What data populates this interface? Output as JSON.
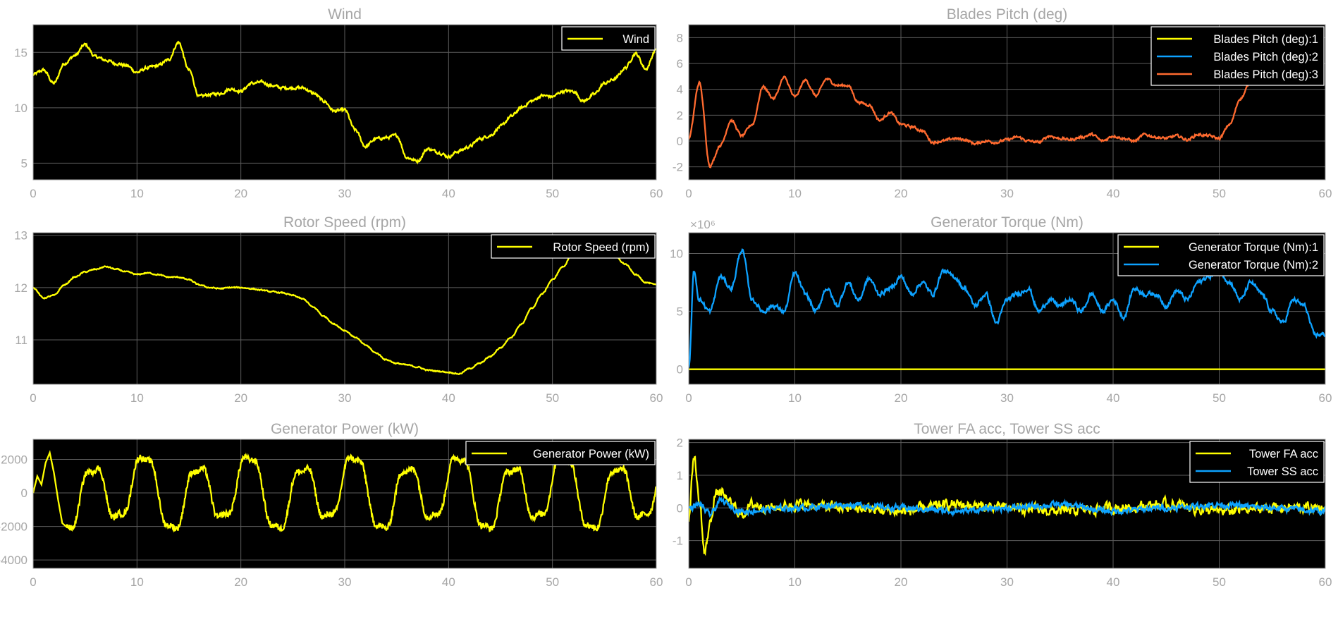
{
  "theme": {
    "plot_bg": "#000000",
    "grid": "#5c5c5c",
    "axis_color": "#a6a6a6",
    "legend_border": "#ffffff",
    "yellow": "#ffff00",
    "blue": "#0da2ff",
    "orange": "#ff6a2f"
  },
  "chart_data": [
    {
      "type": "line",
      "title": "Wind",
      "xlim": [
        0,
        60
      ],
      "ylim": [
        3.5,
        17.5
      ],
      "xticks": [
        0,
        10,
        20,
        30,
        40,
        50,
        60
      ],
      "yticks": [
        5,
        10,
        15
      ],
      "grid": true,
      "legend_position": "top-right",
      "series": [
        {
          "name": "Wind",
          "color": "#ffff00",
          "x": [
            0,
            1,
            2,
            3,
            4,
            5,
            6,
            7,
            8,
            9,
            10,
            11,
            12,
            13,
            14,
            15,
            16,
            17,
            18,
            19,
            20,
            21,
            22,
            23,
            24,
            25,
            26,
            27,
            28,
            29,
            30,
            31,
            32,
            33,
            34,
            35,
            36,
            37,
            38,
            39,
            40,
            41,
            42,
            43,
            44,
            45,
            46,
            47,
            48,
            49,
            50,
            51,
            52,
            53,
            54,
            55,
            56,
            57,
            58,
            59,
            60
          ],
          "y": [
            13.0,
            13.4,
            12.2,
            14.0,
            14.7,
            15.7,
            14.6,
            14.3,
            14.0,
            13.8,
            13.2,
            13.6,
            13.8,
            14.3,
            15.9,
            13.4,
            11.0,
            11.2,
            11.3,
            11.7,
            11.5,
            12.2,
            12.3,
            12.0,
            11.8,
            11.8,
            11.8,
            11.3,
            10.6,
            9.7,
            9.8,
            8.0,
            6.5,
            7.2,
            7.3,
            7.5,
            5.5,
            5.2,
            6.3,
            6.0,
            5.6,
            6.1,
            6.5,
            7.2,
            7.5,
            8.3,
            9.2,
            10.0,
            10.6,
            11.1,
            11.0,
            11.5,
            11.5,
            10.6,
            11.2,
            12.2,
            12.6,
            13.6,
            14.9,
            13.5,
            15.3
          ],
          "noise": 0.25
        }
      ]
    },
    {
      "type": "line",
      "title": "Blades Pitch (deg)",
      "xlim": [
        0,
        60
      ],
      "ylim": [
        -3,
        9
      ],
      "xticks": [
        0,
        10,
        20,
        30,
        40,
        50,
        60
      ],
      "yticks": [
        -2,
        0,
        2,
        4,
        6,
        8
      ],
      "grid": true,
      "legend_position": "top-right",
      "series": [
        {
          "name": "Blades Pitch (deg):1",
          "color": "#ffff00",
          "x": [],
          "y": []
        },
        {
          "name": "Blades Pitch (deg):2",
          "color": "#0da2ff",
          "x": [],
          "y": []
        },
        {
          "name": "Blades Pitch (deg):3",
          "color": "#ff6a2f",
          "x": [
            0,
            1,
            2,
            3,
            4,
            5,
            6,
            7,
            8,
            9,
            10,
            11,
            12,
            13,
            14,
            15,
            16,
            17,
            18,
            19,
            20,
            21,
            22,
            23,
            24,
            25,
            26,
            27,
            28,
            29,
            30,
            31,
            32,
            33,
            34,
            35,
            36,
            37,
            38,
            39,
            40,
            41,
            42,
            43,
            44,
            45,
            46,
            47,
            48,
            49,
            50,
            51,
            52,
            53
          ],
          "y": [
            0.2,
            4.5,
            -1.9,
            -0.3,
            1.6,
            0.4,
            1.3,
            4.2,
            3.3,
            4.9,
            3.4,
            4.7,
            3.5,
            4.8,
            4.3,
            4.3,
            3.0,
            2.8,
            1.6,
            2.2,
            1.3,
            1.1,
            0.8,
            -0.1,
            0.0,
            0.2,
            0.1,
            -0.2,
            0.0,
            -0.1,
            0.1,
            0.3,
            0.0,
            -0.1,
            0.4,
            0.2,
            0.1,
            0.3,
            0.5,
            0.0,
            0.4,
            0.2,
            0.0,
            0.5,
            0.3,
            0.2,
            0.4,
            0.1,
            0.5,
            0.4,
            0.2,
            1.3,
            3.3,
            4.6
          ],
          "noise": 0.18
        }
      ]
    },
    {
      "type": "line",
      "title": "Rotor Speed (rpm)",
      "xlim": [
        0,
        60
      ],
      "ylim": [
        10.15,
        13.05
      ],
      "xticks": [
        0,
        10,
        20,
        30,
        40,
        50,
        60
      ],
      "yticks": [
        11,
        12,
        13
      ],
      "grid": true,
      "legend_position": "top-right",
      "series": [
        {
          "name": "Rotor Speed (rpm)",
          "color": "#ffff00",
          "x": [
            0,
            1,
            2,
            3,
            4,
            5,
            6,
            7,
            8,
            9,
            10,
            11,
            12,
            13,
            14,
            15,
            16,
            17,
            18,
            19,
            20,
            21,
            22,
            23,
            24,
            25,
            26,
            27,
            28,
            29,
            30,
            31,
            32,
            33,
            34,
            35,
            36,
            37,
            38,
            39,
            40,
            41,
            42,
            43,
            44,
            45,
            46,
            47,
            48,
            49,
            50,
            51,
            52,
            53,
            54,
            55,
            56,
            57,
            58,
            59,
            60
          ],
          "y": [
            12.0,
            11.8,
            11.85,
            12.05,
            12.2,
            12.3,
            12.35,
            12.4,
            12.35,
            12.3,
            12.25,
            12.28,
            12.25,
            12.2,
            12.2,
            12.15,
            12.05,
            12.0,
            11.98,
            12.0,
            12.0,
            11.98,
            11.95,
            11.92,
            11.9,
            11.85,
            11.78,
            11.62,
            11.45,
            11.3,
            11.18,
            11.05,
            10.9,
            10.75,
            10.62,
            10.55,
            10.52,
            10.48,
            10.42,
            10.4,
            10.38,
            10.35,
            10.45,
            10.55,
            10.68,
            10.85,
            11.05,
            11.3,
            11.6,
            11.88,
            12.15,
            12.4,
            12.65,
            12.75,
            12.8,
            12.75,
            12.6,
            12.45,
            12.25,
            12.1,
            12.05
          ],
          "noise": 0.02
        }
      ]
    },
    {
      "type": "line",
      "title": "Generator Torque (Nm)",
      "xlim": [
        0,
        60
      ],
      "ylim": [
        -1.3,
        11.8
      ],
      "y_exponent": "×10⁶",
      "xticks": [
        0,
        10,
        20,
        30,
        40,
        50,
        60
      ],
      "yticks": [
        0,
        5,
        10
      ],
      "grid": true,
      "legend_position": "top-right",
      "series": [
        {
          "name": "Generator Torque (Nm):1",
          "color": "#ffff00",
          "x": [
            0,
            60
          ],
          "y": [
            0,
            0
          ],
          "noise": 0
        },
        {
          "name": "Generator Torque (Nm):2",
          "color": "#0da2ff",
          "x": [
            0,
            0.5,
            1,
            2,
            3,
            4,
            5,
            6,
            7,
            8,
            9,
            10,
            11,
            12,
            13,
            14,
            15,
            16,
            17,
            18,
            19,
            20,
            21,
            22,
            23,
            24,
            25,
            26,
            27,
            28,
            29,
            30,
            31,
            32,
            33,
            34,
            35,
            36,
            37,
            38,
            39,
            40,
            41,
            42,
            43,
            44,
            45,
            46,
            47,
            48,
            49,
            50,
            51,
            52,
            53,
            54,
            55,
            56,
            57,
            58,
            59,
            60
          ],
          "y": [
            0,
            8.5,
            6.0,
            5.0,
            8.0,
            7.0,
            10.3,
            6.0,
            5.0,
            5.5,
            5.0,
            8.3,
            6.5,
            5.0,
            7.0,
            5.5,
            7.5,
            6.0,
            7.8,
            6.5,
            7.0,
            8.0,
            6.5,
            7.5,
            6.5,
            8.5,
            8.0,
            7.0,
            5.5,
            6.5,
            4.0,
            6.0,
            6.5,
            7.0,
            5.0,
            6.0,
            5.5,
            6.0,
            5.0,
            6.5,
            5.0,
            6.0,
            4.5,
            7.0,
            6.5,
            6.5,
            5.5,
            6.8,
            6.0,
            7.5,
            8.0,
            8.5,
            7.5,
            6.0,
            7.5,
            6.5,
            5.0,
            4.0,
            6.0,
            5.5,
            3.0,
            3.0
          ],
          "noise": 0.35
        }
      ]
    },
    {
      "type": "line",
      "title": "Generator Power (kW)",
      "xlim": [
        0,
        60
      ],
      "ylim": [
        -4500,
        3200
      ],
      "xticks": [
        0,
        10,
        20,
        30,
        40,
        50,
        60
      ],
      "yticks": [
        -4000,
        -2000,
        0,
        2000
      ],
      "grid": true,
      "legend_position": "top-right",
      "series": [
        {
          "name": "Generator Power (kW)",
          "color": "#ffff00",
          "sine": {
            "period": 5.05,
            "amplitude": 2300,
            "start": 3.2
          },
          "x": [
            0,
            0.4,
            0.8,
            1.2,
            1.6,
            2.0,
            2.4,
            2.8
          ],
          "y": [
            0,
            1000,
            500,
            1800,
            2400,
            1200,
            -400,
            -1800
          ],
          "noise": 300
        }
      ]
    },
    {
      "type": "line",
      "title": "Tower FA acc, Tower SS acc",
      "xlim": [
        0,
        60
      ],
      "ylim": [
        -1.85,
        2.1
      ],
      "xticks": [
        0,
        10,
        20,
        30,
        40,
        50,
        60
      ],
      "yticks": [
        -1,
        0,
        1,
        2
      ],
      "grid": true,
      "legend_position": "top-right",
      "series": [
        {
          "name": "Tower FA acc",
          "color": "#ffff00",
          "x": [
            0,
            0.5,
            1,
            1.5,
            2,
            2.5,
            3,
            3.5,
            4,
            5,
            6,
            8,
            10,
            15,
            20,
            25,
            30,
            35,
            40,
            45,
            50,
            55,
            60
          ],
          "y": [
            -0.3,
            1.6,
            0.2,
            -1.4,
            -0.5,
            0.4,
            0.5,
            0.3,
            0.1,
            -0.2,
            0.1,
            0.0,
            0.1,
            0.0,
            -0.1,
            0.1,
            0.0,
            -0.1,
            0.0,
            0.1,
            -0.1,
            0.0,
            0.0
          ],
          "noise": 0.28
        },
        {
          "name": "Tower SS acc",
          "color": "#0da2ff",
          "x": [
            0,
            1,
            2,
            3,
            5,
            10,
            15,
            20,
            25,
            30,
            35,
            40,
            45,
            50,
            55,
            60
          ],
          "y": [
            0.0,
            0.1,
            -0.2,
            0.2,
            -0.1,
            0.0,
            0.1,
            0.0,
            -0.1,
            0.0,
            0.1,
            -0.1,
            0.0,
            0.1,
            0.0,
            -0.1
          ],
          "noise": 0.16
        }
      ]
    }
  ]
}
